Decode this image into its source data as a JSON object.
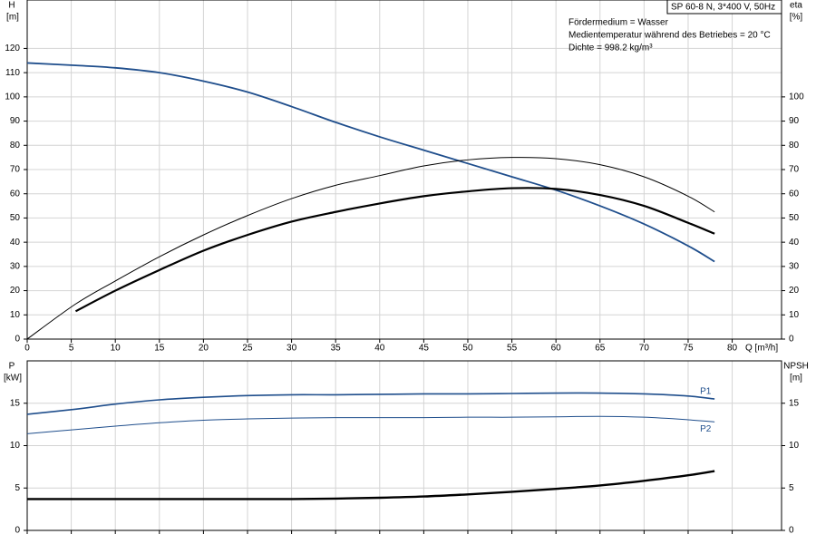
{
  "chart_data": [
    {
      "type": "line",
      "title": "SP 60-8 N, 3*400 V, 50Hz",
      "annotations": [
        "Fördermedium = Wasser",
        "Medientemperatur während des Betriebes = 20 °C",
        "Dichte = 998.2 kg/m³"
      ],
      "x_label": "Q [m³/h]",
      "y_label": [
        "H",
        "[m]"
      ],
      "y2_label": [
        "eta",
        "[%]"
      ],
      "x": [
        0,
        5.5,
        10,
        15,
        20,
        25,
        30,
        35,
        40,
        45,
        50,
        55,
        60,
        65,
        70,
        75,
        78
      ],
      "xlim": [
        0,
        85.6
      ],
      "xticks": [
        0,
        5,
        10,
        15,
        20,
        25,
        30,
        35,
        40,
        45,
        50,
        55,
        60,
        65,
        70,
        75,
        80
      ],
      "ylim": [
        0,
        140
      ],
      "yticks": [
        0,
        10,
        20,
        30,
        40,
        50,
        60,
        70,
        80,
        90,
        100,
        110,
        120
      ],
      "y2lim": [
        0,
        140
      ],
      "y2ticks": [
        0,
        10,
        20,
        30,
        40,
        50,
        60,
        70,
        80,
        90,
        100
      ],
      "grid": true,
      "series": [
        {
          "color": "#1f4e8c",
          "width": 1.8,
          "values": [
            114,
            113,
            112,
            110,
            106.5,
            102,
            96,
            89.5,
            83.5,
            78,
            72.5,
            67,
            61.5,
            55,
            47.5,
            38.5,
            32
          ]
        },
        {
          "color": "#000000",
          "width": 1,
          "axis": "y2",
          "values": [
            0,
            14.5,
            24,
            34,
            43,
            51,
            58,
            63.5,
            67.5,
            71.5,
            74,
            75,
            74.5,
            72,
            67,
            59,
            52.5
          ]
        },
        {
          "color": "#000000",
          "width": 2.2,
          "axis": "y2",
          "values": [
            null,
            11.5,
            20,
            28.5,
            36.5,
            43,
            48.5,
            52.5,
            56,
            59,
            61,
            62.3,
            62,
            59.5,
            55,
            48,
            43.5
          ]
        }
      ]
    },
    {
      "type": "line",
      "y_label": [
        "P",
        "[kW]"
      ],
      "y2_label": [
        "NPSH",
        "[m]"
      ],
      "x": [
        0,
        5.5,
        10,
        15,
        20,
        25,
        30,
        35,
        40,
        45,
        50,
        55,
        60,
        65,
        70,
        75,
        78
      ],
      "xlim": [
        0,
        85.6
      ],
      "ylim": [
        0,
        20
      ],
      "yticks": [
        0,
        5,
        10,
        15
      ],
      "y2lim": [
        0,
        20
      ],
      "y2ticks": [
        0,
        5,
        10,
        15
      ],
      "grid": true,
      "series": [
        {
          "name": "P1",
          "color": "#1f4e8c",
          "width": 1.6,
          "values": [
            13.7,
            14.3,
            14.9,
            15.4,
            15.7,
            15.9,
            16,
            16,
            16.05,
            16.1,
            16.1,
            16.15,
            16.2,
            16.2,
            16.1,
            15.85,
            15.5
          ]
        },
        {
          "name": "P2",
          "color": "#1f4e8c",
          "width": 1,
          "values": [
            11.4,
            11.9,
            12.3,
            12.7,
            13,
            13.15,
            13.25,
            13.3,
            13.3,
            13.3,
            13.35,
            13.35,
            13.4,
            13.45,
            13.35,
            13.05,
            12.8
          ]
        },
        {
          "color": "#000000",
          "width": 2.4,
          "axis": "y2",
          "values": [
            3.7,
            3.7,
            3.7,
            3.7,
            3.7,
            3.7,
            3.7,
            3.75,
            3.85,
            4,
            4.25,
            4.55,
            4.9,
            5.3,
            5.85,
            6.5,
            7
          ]
        }
      ]
    }
  ]
}
